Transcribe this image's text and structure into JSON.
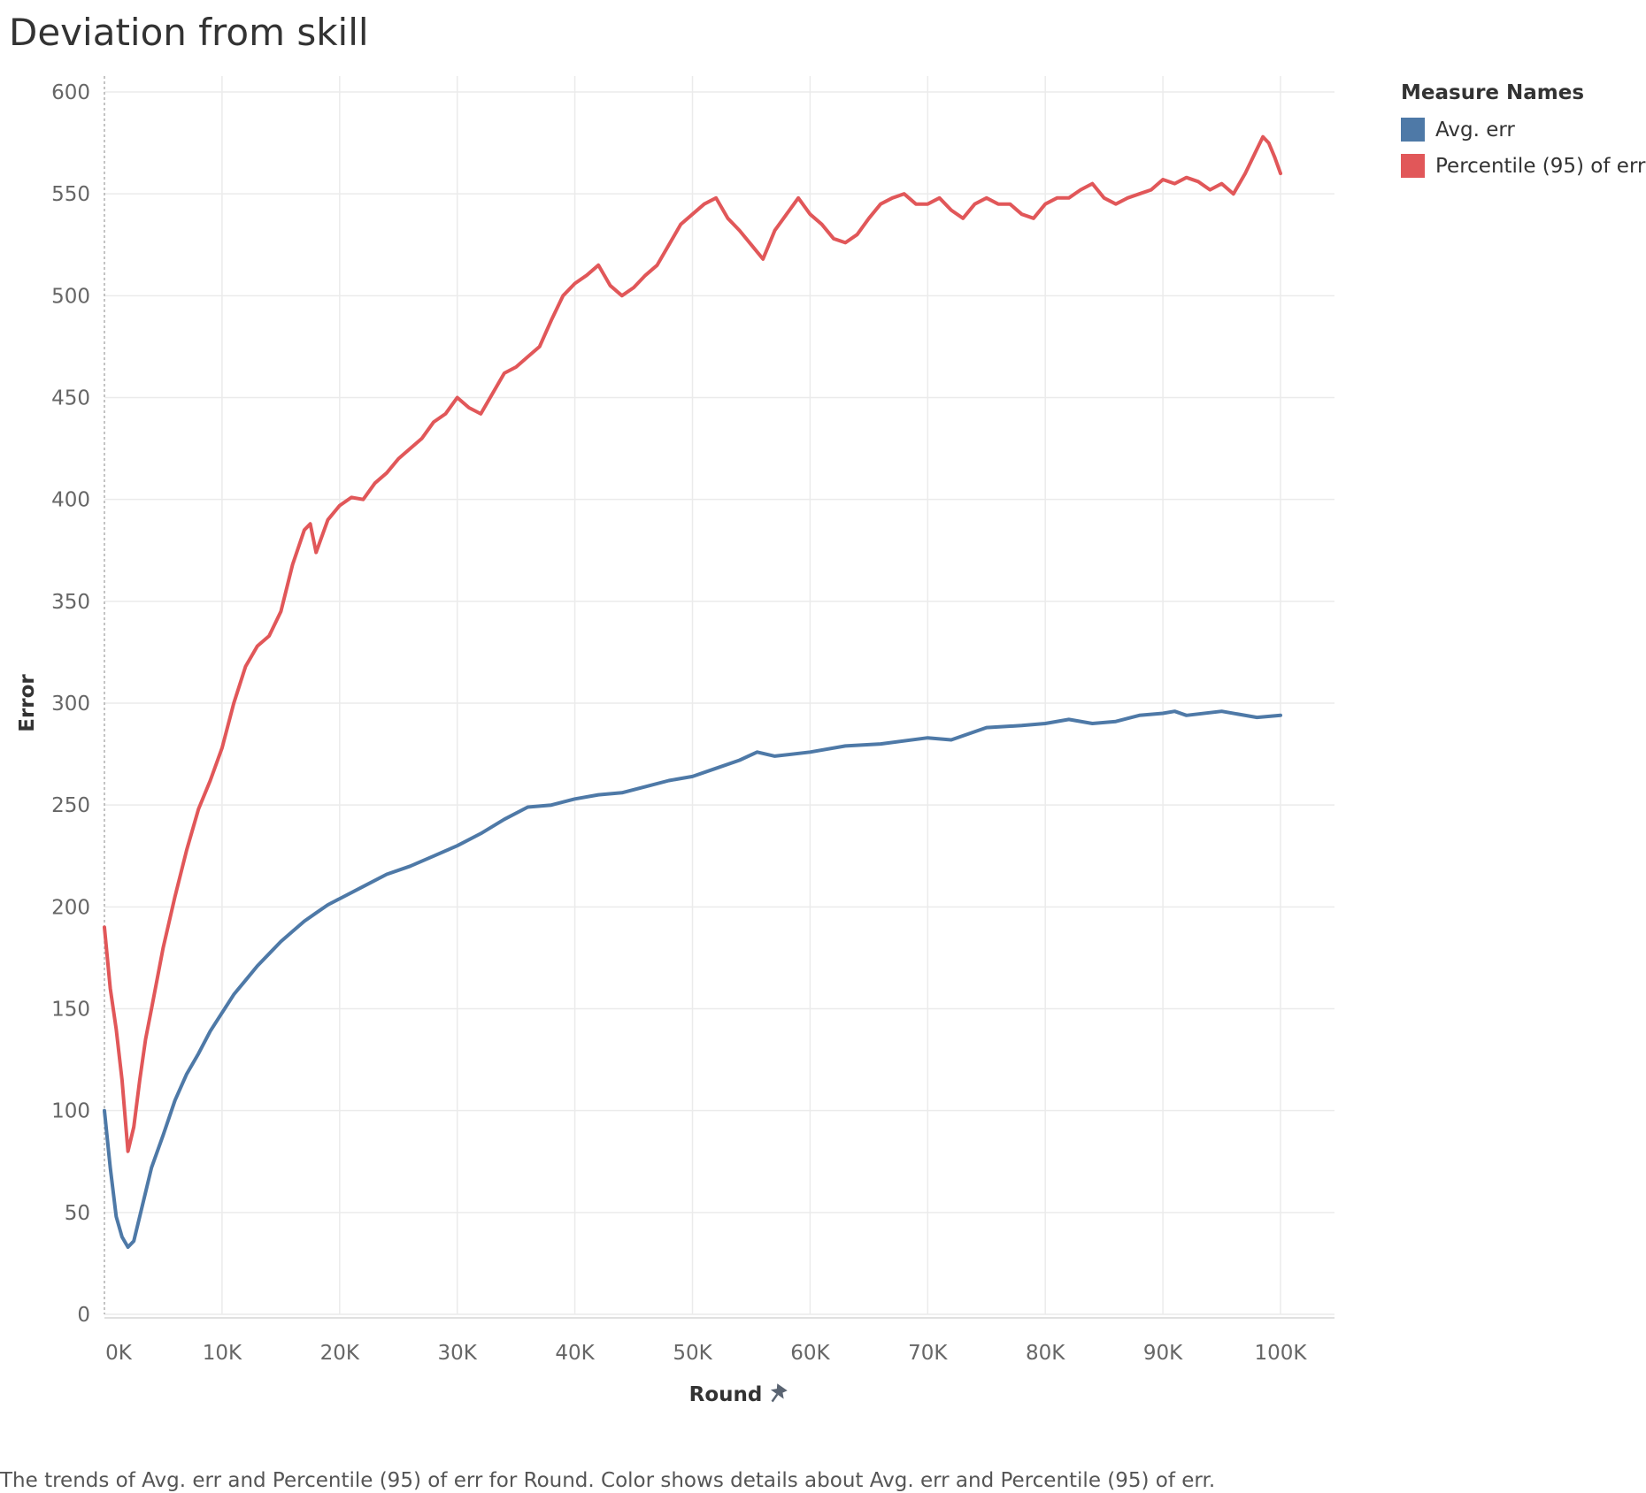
{
  "title": "Deviation from skill",
  "caption": "The trends of Avg. err and Percentile (95) of err for Round.  Color shows details about Avg. err and Percentile (95) of err.",
  "legend": {
    "title": "Measure Names",
    "items": [
      {
        "label": "Avg. err",
        "color": "#4e79a7"
      },
      {
        "label": "Percentile (95) of err",
        "color": "#e15759"
      }
    ]
  },
  "chart_data": {
    "type": "line",
    "title": "Deviation from skill",
    "xlabel": "Round",
    "ylabel": "Error",
    "xlim": [
      0,
      100000
    ],
    "ylim": [
      0,
      600
    ],
    "x_ticks": [
      "0K",
      "10K",
      "20K",
      "30K",
      "40K",
      "50K",
      "60K",
      "70K",
      "80K",
      "90K",
      "100K"
    ],
    "x_tick_values": [
      0,
      10000,
      20000,
      30000,
      40000,
      50000,
      60000,
      70000,
      80000,
      90000,
      100000
    ],
    "y_ticks": [
      0,
      50,
      100,
      150,
      200,
      250,
      300,
      350,
      400,
      450,
      500,
      550,
      600
    ],
    "grid": true,
    "legend_position": "top-right",
    "series": [
      {
        "name": "Avg. err",
        "color": "#4e79a7",
        "x": [
          0,
          500,
          1000,
          1500,
          2000,
          2500,
          3000,
          4000,
          5000,
          6000,
          7000,
          8000,
          9000,
          10000,
          11000,
          12000,
          13000,
          14000,
          15000,
          16000,
          17000,
          18000,
          19000,
          20000,
          22000,
          24000,
          26000,
          28000,
          30000,
          32000,
          34000,
          36000,
          38000,
          40000,
          42000,
          44000,
          46000,
          48000,
          50000,
          52000,
          54000,
          55500,
          57000,
          60000,
          63000,
          66000,
          70000,
          72000,
          75000,
          78000,
          80000,
          82000,
          84000,
          86000,
          88000,
          90000,
          91000,
          92000,
          95000,
          98000,
          100000
        ],
        "y": [
          100,
          72,
          48,
          38,
          33,
          36,
          48,
          72,
          88,
          105,
          118,
          128,
          139,
          148,
          157,
          164,
          171,
          177,
          183,
          188,
          193,
          197,
          201,
          204,
          210,
          216,
          220,
          225,
          230,
          236,
          243,
          249,
          250,
          253,
          255,
          256,
          259,
          262,
          264,
          268,
          272,
          276,
          274,
          276,
          279,
          280,
          283,
          282,
          288,
          289,
          290,
          292,
          290,
          291,
          294,
          295,
          296,
          294,
          296,
          293,
          294
        ]
      },
      {
        "name": "Percentile (95) of err",
        "color": "#e15759",
        "x": [
          0,
          500,
          1000,
          1500,
          2000,
          2500,
          3000,
          3500,
          4000,
          5000,
          6000,
          7000,
          8000,
          9000,
          10000,
          11000,
          12000,
          13000,
          14000,
          15000,
          16000,
          17000,
          17500,
          18000,
          19000,
          20000,
          21000,
          22000,
          23000,
          24000,
          25000,
          26000,
          27000,
          28000,
          29000,
          30000,
          31000,
          32000,
          33000,
          34000,
          35000,
          36000,
          37000,
          38000,
          39000,
          40000,
          41000,
          42000,
          43000,
          44000,
          45000,
          46000,
          47000,
          48000,
          49000,
          50000,
          51000,
          52000,
          53000,
          54000,
          55000,
          56000,
          57000,
          58000,
          59000,
          60000,
          61000,
          62000,
          63000,
          64000,
          65000,
          66000,
          67000,
          68000,
          69000,
          70000,
          71000,
          72000,
          73000,
          74000,
          75000,
          76000,
          77000,
          78000,
          79000,
          80000,
          81000,
          82000,
          83000,
          84000,
          85000,
          86000,
          87000,
          88000,
          89000,
          90000,
          91000,
          92000,
          93000,
          94000,
          95000,
          96000,
          97000,
          98000,
          98500,
          99000,
          99500,
          100000
        ],
        "y": [
          190,
          160,
          140,
          115,
          80,
          92,
          115,
          135,
          150,
          180,
          205,
          228,
          248,
          262,
          278,
          300,
          318,
          328,
          333,
          345,
          368,
          385,
          388,
          374,
          390,
          397,
          401,
          400,
          408,
          413,
          420,
          425,
          430,
          438,
          442,
          450,
          445,
          442,
          452,
          462,
          465,
          470,
          475,
          488,
          500,
          506,
          510,
          515,
          505,
          500,
          504,
          510,
          515,
          525,
          535,
          540,
          545,
          548,
          538,
          532,
          525,
          518,
          532,
          540,
          548,
          540,
          535,
          528,
          526,
          530,
          538,
          545,
          548,
          550,
          545,
          545,
          548,
          542,
          538,
          545,
          548,
          545,
          545,
          540,
          538,
          545,
          548,
          548,
          552,
          555,
          548,
          545,
          548,
          550,
          552,
          557,
          555,
          558,
          556,
          552,
          555,
          550,
          560,
          572,
          578,
          575,
          568,
          560
        ]
      }
    ]
  }
}
